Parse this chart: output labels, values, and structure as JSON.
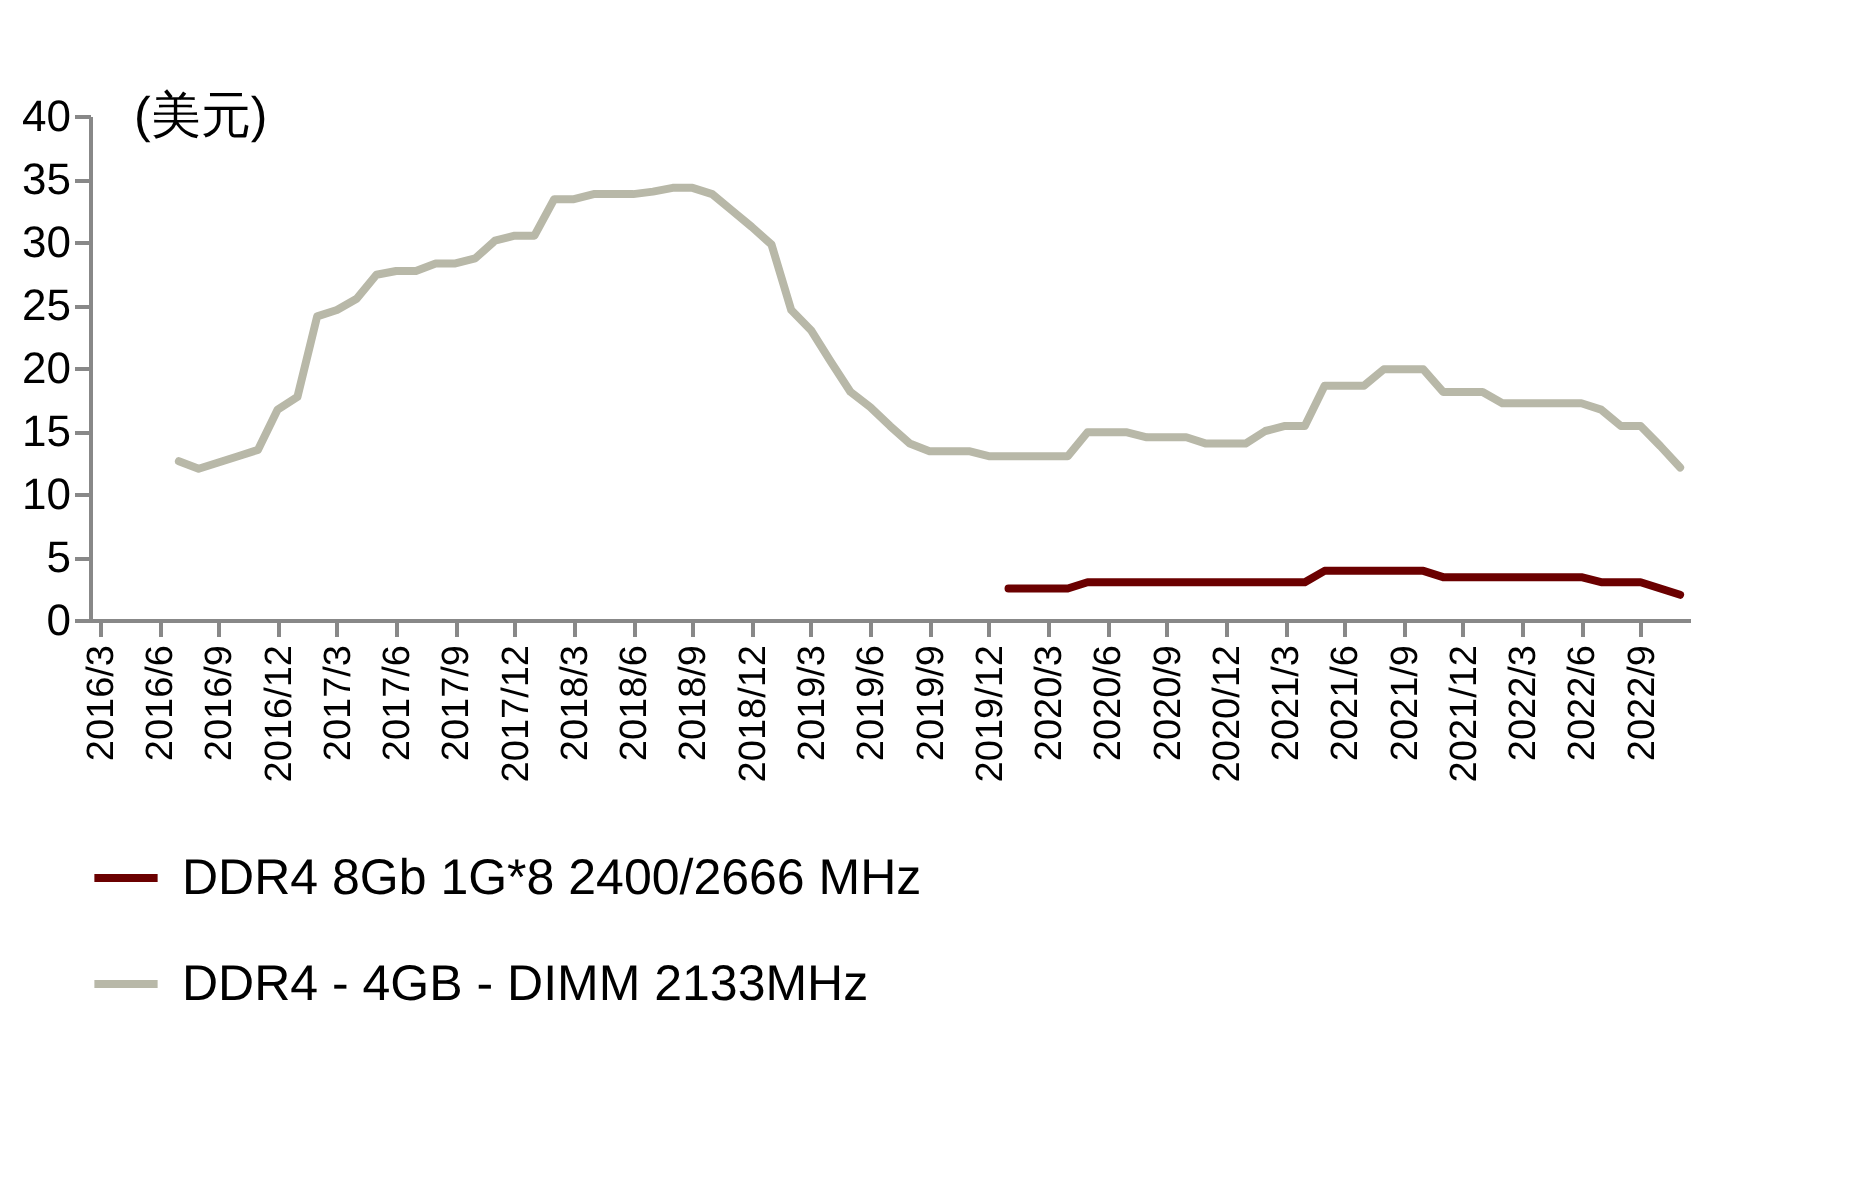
{
  "chart_data": {
    "type": "line",
    "annotations": [
      "(美元)"
    ],
    "categories": [
      "2016/3",
      null,
      null,
      "2016/6",
      null,
      null,
      "2016/9",
      null,
      null,
      "2016/12",
      null,
      null,
      "2017/3",
      null,
      null,
      "2017/6",
      null,
      null,
      "2017/9",
      null,
      null,
      "2017/12",
      null,
      null,
      "2018/3",
      null,
      null,
      "2018/6",
      null,
      null,
      "2018/9",
      null,
      null,
      "2018/12",
      null,
      null,
      "2019/3",
      null,
      null,
      "2019/6",
      null,
      null,
      "2019/9",
      null,
      null,
      "2019/12",
      null,
      null,
      "2020/3",
      null,
      null,
      "2020/6",
      null,
      null,
      "2020/9",
      null,
      null,
      "2020/12",
      null,
      null,
      "2021/3",
      null,
      null,
      "2021/6",
      null,
      null,
      "2021/9",
      null,
      null,
      "2021/12",
      null,
      null,
      "2022/3",
      null,
      null,
      "2022/6",
      null,
      null,
      "2022/9",
      null,
      null
    ],
    "series": [
      {
        "name": "DDR4 8Gb 1G*8 2400/2666 MHz",
        "color": "#6b0000",
        "values": [
          null,
          null,
          null,
          null,
          null,
          null,
          null,
          null,
          null,
          null,
          null,
          null,
          null,
          null,
          null,
          null,
          null,
          null,
          null,
          null,
          null,
          null,
          null,
          null,
          null,
          null,
          null,
          null,
          null,
          null,
          null,
          null,
          null,
          null,
          null,
          null,
          null,
          null,
          null,
          null,
          null,
          null,
          null,
          null,
          null,
          null,
          2.5,
          2.5,
          2.5,
          2.5,
          3.0,
          3.0,
          3.0,
          3.0,
          3.0,
          3.0,
          3.0,
          3.0,
          3.0,
          3.0,
          3.0,
          3.0,
          3.9,
          3.9,
          3.9,
          3.9,
          3.9,
          3.9,
          3.4,
          3.4,
          3.4,
          3.4,
          3.4,
          3.4,
          3.4,
          3.4,
          3.0,
          3.0,
          3.0,
          2.5,
          2.0
        ]
      },
      {
        "name": "DDR4 - 4GB - DIMM 2133MHz",
        "color": "#b8b8a8",
        "values": [
          null,
          null,
          null,
          null,
          12.6,
          12.0,
          12.5,
          13.0,
          13.5,
          16.7,
          17.7,
          24.1,
          24.6,
          25.5,
          27.4,
          27.7,
          27.7,
          28.3,
          28.3,
          28.7,
          30.1,
          30.5,
          30.5,
          33.4,
          33.4,
          33.8,
          33.8,
          33.8,
          34.0,
          34.3,
          34.3,
          33.8,
          32.5,
          31.2,
          29.8,
          24.6,
          23.0,
          20.5,
          18.1,
          16.9,
          15.4,
          14.0,
          13.4,
          13.4,
          13.4,
          13.0,
          13.0,
          13.0,
          13.0,
          13.0,
          14.9,
          14.9,
          14.9,
          14.5,
          14.5,
          14.5,
          14.0,
          14.0,
          14.0,
          15.0,
          15.4,
          15.4,
          18.6,
          18.6,
          18.6,
          19.9,
          19.9,
          19.9,
          18.1,
          18.1,
          18.1,
          17.2,
          17.2,
          17.2,
          17.2,
          17.2,
          16.7,
          15.4,
          15.4,
          13.8,
          12.1
        ]
      }
    ],
    "ylim": [
      0,
      40
    ],
    "yticks": [
      0,
      5,
      10,
      15,
      20,
      25,
      30,
      35,
      40
    ],
    "grid": false,
    "legend": "bottom",
    "line_style": "solid",
    "marker": "none"
  }
}
